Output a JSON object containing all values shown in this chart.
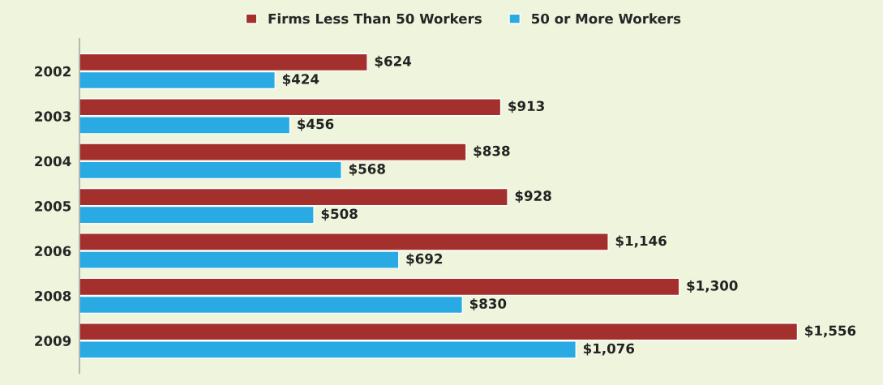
{
  "chart_data": {
    "type": "bar",
    "orientation": "horizontal",
    "categories": [
      "2002",
      "2003",
      "2004",
      "2005",
      "2006",
      "2008",
      "2009"
    ],
    "series": [
      {
        "name": "Firms Less Than 50 Workers",
        "color": "#a3302c",
        "values": [
          624,
          913,
          838,
          928,
          1146,
          1300,
          1556
        ],
        "value_labels": [
          "$624",
          "$913",
          "$838",
          "$928",
          "$1,146",
          "$1,300",
          "$1,556"
        ]
      },
      {
        "name": "50 or More Workers",
        "color": "#2aaae2",
        "values": [
          424,
          456,
          568,
          508,
          692,
          830,
          1076
        ],
        "value_labels": [
          "$424",
          "$456",
          "$568",
          "$508",
          "$692",
          "$830",
          "$1,076"
        ]
      }
    ],
    "legend": "top",
    "tick_labels": "y",
    "grid": false
  }
}
